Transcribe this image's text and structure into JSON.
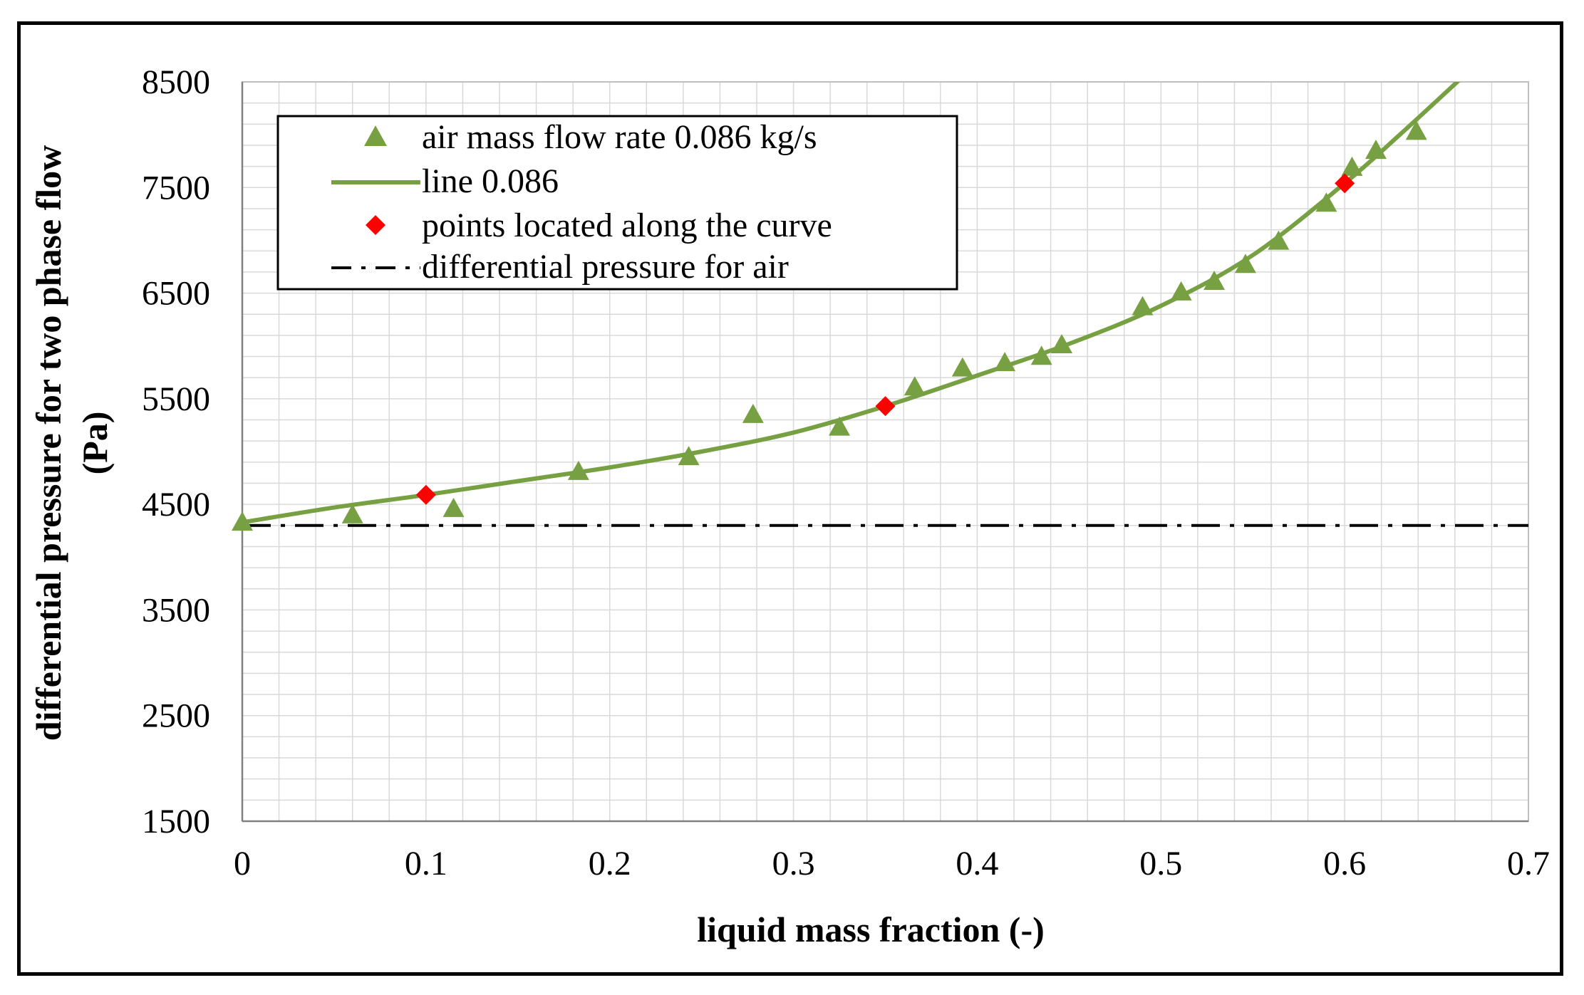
{
  "chart_data": {
    "type": "scatter",
    "title": "",
    "xlabel": "liquid mass fraction (-)",
    "ylabel_line1": "differential pressure for two phase flow",
    "ylabel_line2": "(Pa)",
    "xlim": [
      0,
      0.7
    ],
    "ylim": [
      1500,
      8500
    ],
    "x_ticks": [
      0,
      0.1,
      0.2,
      0.3,
      0.4,
      0.5,
      0.6,
      0.7
    ],
    "x_tick_labels": [
      "0",
      "0.1",
      "0.2",
      "0.3",
      "0.4",
      "0.5",
      "0.6",
      "0.7"
    ],
    "y_ticks": [
      1500,
      2500,
      3500,
      4500,
      5500,
      6500,
      7500,
      8500
    ],
    "y_tick_labels": [
      "1500",
      "2500",
      "3500",
      "4500",
      "5500",
      "6500",
      "7500",
      "8500"
    ],
    "grid": true,
    "legend_position": "top-left",
    "colors": {
      "green": "#77a043",
      "red": "#ff0000",
      "black": "#000000",
      "grid": "#d9d9d9"
    },
    "series": [
      {
        "name": "air mass flow rate 0.086 kg/s",
        "kind": "triangle-markers",
        "x": [
          0.0,
          0.06,
          0.115,
          0.183,
          0.243,
          0.278,
          0.325,
          0.366,
          0.392,
          0.415,
          0.435,
          0.446,
          0.49,
          0.511,
          0.529,
          0.546,
          0.564,
          0.59,
          0.604,
          0.617,
          0.639
        ],
        "y": [
          4320,
          4390,
          4450,
          4800,
          4940,
          5340,
          5220,
          5600,
          5780,
          5830,
          5890,
          6000,
          6360,
          6500,
          6600,
          6760,
          6980,
          7340,
          7680,
          7840,
          8020
        ]
      },
      {
        "name": "line 0.086",
        "kind": "curve",
        "x": [
          0.0,
          0.05,
          0.1,
          0.15,
          0.2,
          0.25,
          0.3,
          0.35,
          0.4,
          0.45,
          0.5,
          0.55,
          0.6,
          0.63,
          0.665
        ],
        "y": [
          4330,
          4470,
          4590,
          4720,
          4850,
          5000,
          5180,
          5430,
          5720,
          6020,
          6380,
          6860,
          7540,
          8000,
          8560
        ]
      },
      {
        "name": "points located along the curve",
        "kind": "diamond-markers",
        "x": [
          0.1,
          0.35,
          0.6
        ],
        "y": [
          4590,
          5430,
          7540
        ]
      },
      {
        "name": "differential pressure for air",
        "kind": "dash-dot-line",
        "x": [
          0,
          0.7
        ],
        "y": [
          4300,
          4300
        ]
      }
    ]
  }
}
